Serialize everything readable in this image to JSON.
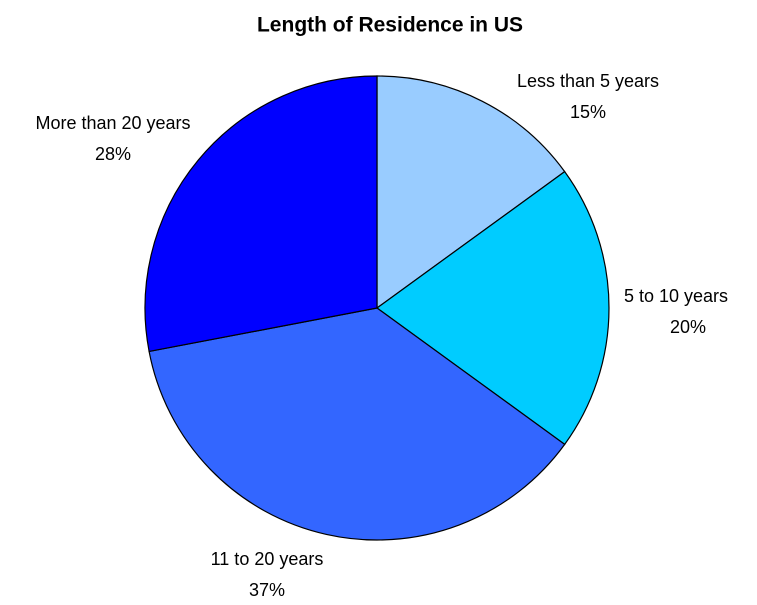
{
  "chart_data": {
    "type": "pie",
    "title": "Length of Residence in US",
    "categories": [
      "Less than 5 years",
      "5 to 10 years",
      "11 to 20 years",
      "More than 20 years"
    ],
    "values": [
      15,
      20,
      37,
      28
    ],
    "value_labels": [
      "15%",
      "20%",
      "37%",
      "28%"
    ],
    "colors": [
      "#99ccff",
      "#00ccff",
      "#3366ff",
      "#0000ff"
    ]
  }
}
